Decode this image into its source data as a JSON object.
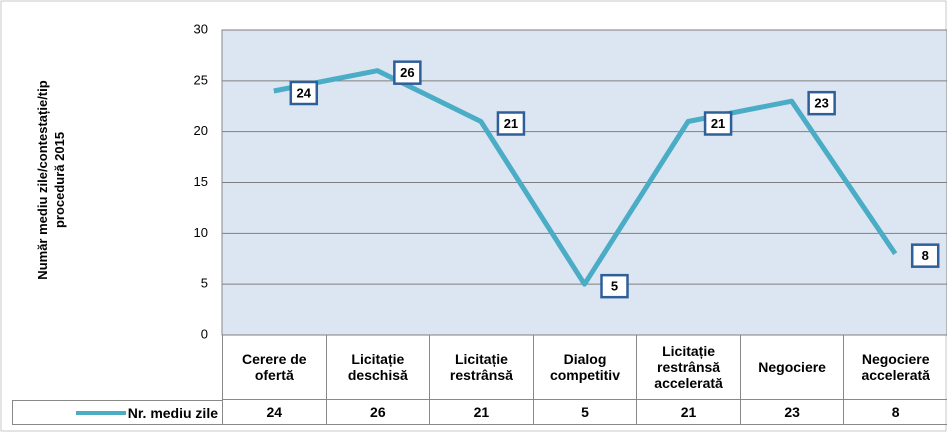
{
  "chart_data": {
    "type": "line",
    "y_label": [
      "Număr mediu zile/contestație/tip",
      "procedură 2015"
    ],
    "categories": [
      "Cerere de ofertă",
      "Licitație deschisă",
      "Licitație restrânsă",
      "Dialog competitiv",
      "Licitație restrânsă accelerată",
      "Negociere",
      "Negociere accelerată"
    ],
    "series": [
      {
        "name": "Nr. mediu zile",
        "color": "#4bacc6",
        "values": [
          24,
          26,
          21,
          5,
          21,
          23,
          8
        ]
      }
    ],
    "ylim": [
      0,
      30
    ],
    "yticks": [
      0,
      5,
      10,
      15,
      20,
      25,
      30
    ],
    "grid": true,
    "data_table": true
  }
}
